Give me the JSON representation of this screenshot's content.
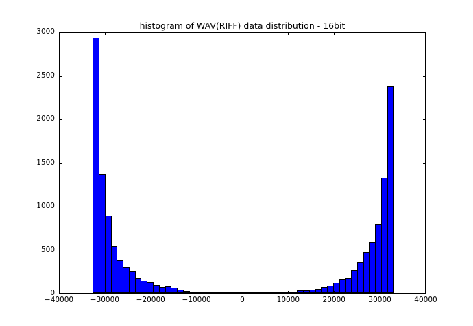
{
  "chart_data": {
    "type": "bar",
    "title": "histogram of WAV(RIFF) data distribution - 16bit",
    "xlabel": "",
    "ylabel": "",
    "xlim": [
      -40000,
      40000
    ],
    "ylim": [
      0,
      3000
    ],
    "grid": false,
    "legend": null,
    "bar_color": "#0000ff",
    "bin_range": [
      -32768,
      32767
    ],
    "bin_count": 50,
    "x_ticks": [
      -40000,
      -30000,
      -20000,
      -10000,
      0,
      10000,
      20000,
      30000,
      40000
    ],
    "x_tick_labels": [
      "−40000",
      "−30000",
      "−20000",
      "−10000",
      "0",
      "10000",
      "20000",
      "30000",
      "40000"
    ],
    "y_ticks": [
      0,
      500,
      1000,
      1500,
      2000,
      2500,
      3000
    ],
    "y_tick_labels": [
      "0",
      "500",
      "1000",
      "1500",
      "2000",
      "2500",
      "3000"
    ],
    "values": [
      2930,
      1360,
      890,
      535,
      380,
      300,
      255,
      175,
      140,
      130,
      95,
      70,
      75,
      60,
      40,
      22,
      18,
      15,
      8,
      3,
      3,
      2,
      2,
      2,
      12,
      3,
      2,
      2,
      8,
      3,
      3,
      10,
      12,
      12,
      30,
      30,
      38,
      50,
      70,
      90,
      120,
      155,
      175,
      260,
      355,
      470,
      585,
      785,
      1320,
      2370
    ]
  }
}
